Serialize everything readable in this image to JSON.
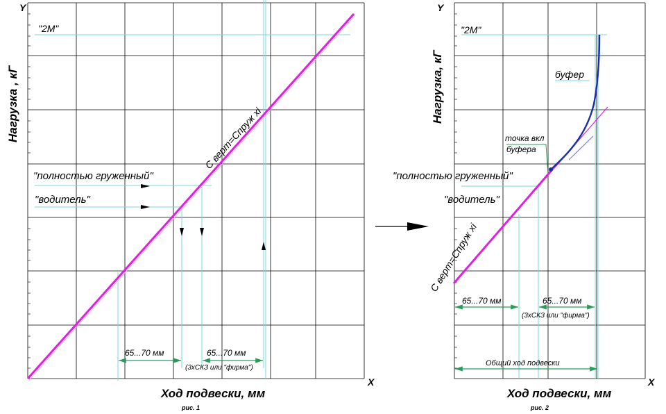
{
  "fig1": {
    "x_axis": "X",
    "y_axis": "Y",
    "y_label": "Нагрузка , кГ",
    "x_label": "Ход подвески, мм",
    "caption": "рис. 1",
    "label_2m": "\"2М\"",
    "label_loaded": "\"полностью груженный\"",
    "label_driver": "\"водитель\"",
    "line_label": "С верт=Спруж хi",
    "dim1": "65...70 мм",
    "dim2": "65...70 мм",
    "dim2_note": "(3хСКЗ или \"фирма\")"
  },
  "fig2": {
    "x_axis": "X",
    "y_axis": "Y",
    "y_label": "Нагрузка, кГ",
    "x_label": "Ход подвески, мм",
    "caption": "рис. 2",
    "label_2m": "\"2М\"",
    "label_loaded": "\"полностью груженный\"",
    "label_driver": "\"водитель\"",
    "line_label": "С верт=Спруж хi",
    "buffer_label": "буфер",
    "buffer_point_line1": "точка вкл",
    "buffer_point_line2": "буфера",
    "dim1": "65...70 мм",
    "dim2": "65...70 мм",
    "dim2_note": "(3хСКЗ или \"фирма\")",
    "total_travel": "Общий ход подвески"
  },
  "colors": {
    "grid": "#000000",
    "spring_line": "#e020e0",
    "buffer_curve": "#1a2ea8",
    "guide_cyan": "#7ed6d6",
    "dim_green": "#2a9a5a",
    "arrow": "#000000"
  }
}
